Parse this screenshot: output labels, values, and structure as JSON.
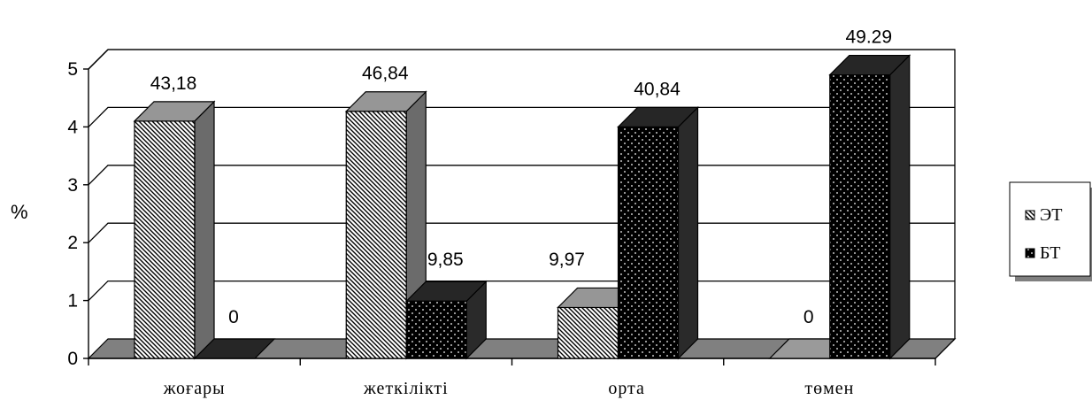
{
  "chart_data": {
    "type": "bar",
    "ylabel": "%",
    "ylim": [
      0,
      5
    ],
    "yticks": [
      "0",
      "1",
      "2",
      "3",
      "4",
      "5"
    ],
    "categories": [
      "жоғары",
      "жеткілікті",
      "орта",
      "төмен"
    ],
    "series": [
      {
        "name": "ЭТ",
        "values": [
          4.1,
          4.27,
          0.88,
          0
        ],
        "labels": [
          "43,18",
          "46,84",
          "9,97",
          "0"
        ]
      },
      {
        "name": "БТ",
        "values": [
          0,
          0.99,
          4.0,
          4.9
        ],
        "labels": [
          "0",
          "9,85",
          "40,84",
          "49.29"
        ]
      }
    ],
    "grid": true,
    "legend": "right",
    "style": "3d-bar",
    "colors": {
      "series1": "#ffffff",
      "series2": "#000000",
      "floor": "#808080",
      "side1": "#6b6b6b",
      "side2": "#2a2a2a"
    }
  }
}
